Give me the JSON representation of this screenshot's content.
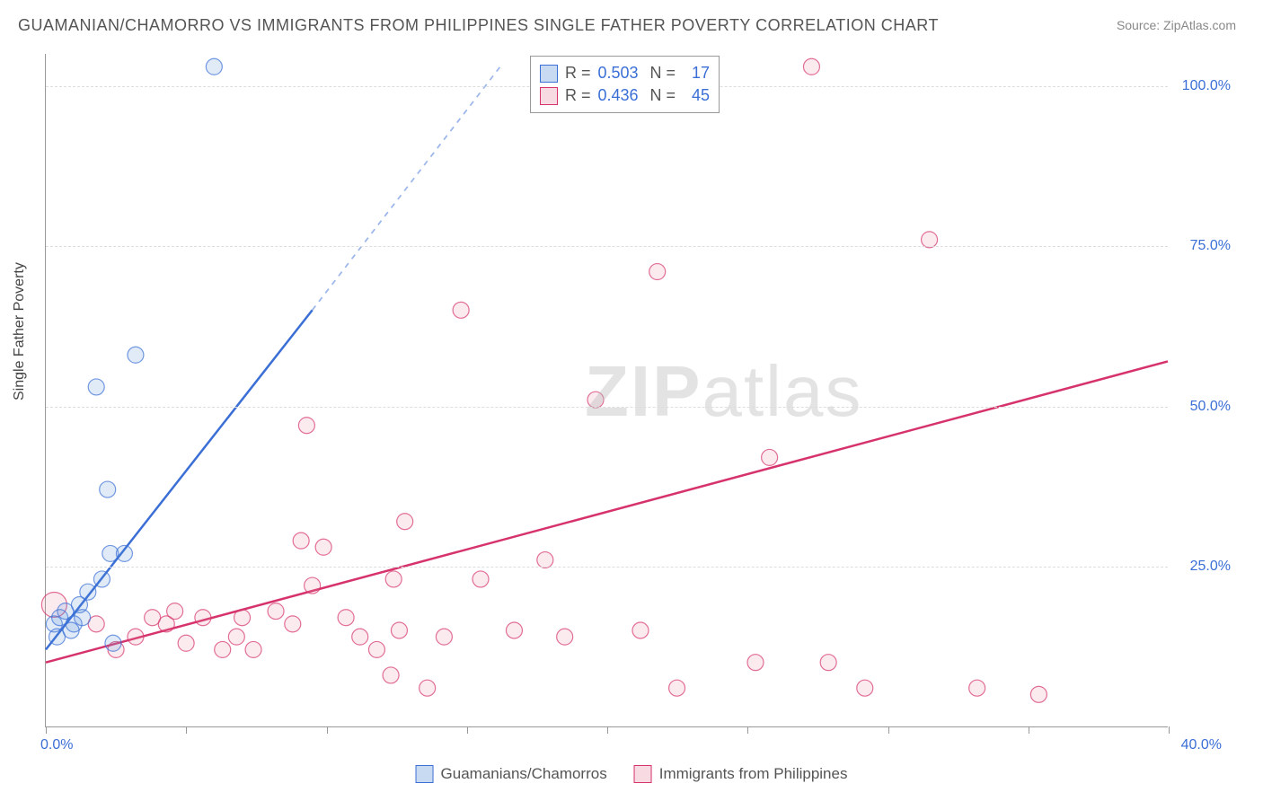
{
  "title": "GUAMANIAN/CHAMORRO VS IMMIGRANTS FROM PHILIPPINES SINGLE FATHER POVERTY CORRELATION CHART",
  "source_label": "Source: ZipAtlas.com",
  "y_axis_label": "Single Father Poverty",
  "watermark": {
    "bold": "ZIP",
    "light": "atlas"
  },
  "chart": {
    "type": "scatter",
    "xlim": [
      0,
      40
    ],
    "ylim": [
      0,
      105
    ],
    "x_origin_label": "0.0%",
    "x_max_label": "40.0%",
    "x_label_color": "#3b6fd6",
    "y_ticks": [
      25,
      50,
      75,
      100
    ],
    "y_tick_labels": [
      "25.0%",
      "50.0%",
      "75.0%",
      "100.0%"
    ],
    "y_tick_color": "#3b6fd6",
    "x_tick_positions": [
      0,
      5,
      10,
      15,
      20,
      25,
      30,
      35,
      40
    ],
    "background_color": "#ffffff",
    "grid_color": "#dddddd",
    "axis_color": "#999999",
    "marker_radius": 9,
    "marker_stroke_width": 1.2,
    "marker_fill_opacity": 0.18,
    "trend_line_width": 2.5,
    "series": [
      {
        "name": "Guamanians/Chamorros",
        "color": "#5b8fd6",
        "stroke": "#3b6fd6",
        "r_value": "0.503",
        "n_value": "17",
        "trend": {
          "x1": 0,
          "y1": 12,
          "x2_solid": 9.5,
          "y2_solid": 65,
          "x2_dash": 16.2,
          "y2_dash": 103
        },
        "points": [
          {
            "x": 0.3,
            "y": 16
          },
          {
            "x": 0.5,
            "y": 17
          },
          {
            "x": 0.7,
            "y": 18
          },
          {
            "x": 1.0,
            "y": 16
          },
          {
            "x": 1.3,
            "y": 17
          },
          {
            "x": 1.2,
            "y": 19
          },
          {
            "x": 1.5,
            "y": 21
          },
          {
            "x": 2.0,
            "y": 23
          },
          {
            "x": 2.3,
            "y": 27
          },
          {
            "x": 2.8,
            "y": 27
          },
          {
            "x": 2.4,
            "y": 13
          },
          {
            "x": 2.2,
            "y": 37
          },
          {
            "x": 1.8,
            "y": 53
          },
          {
            "x": 3.2,
            "y": 58
          },
          {
            "x": 6.0,
            "y": 103
          },
          {
            "x": 0.4,
            "y": 14
          },
          {
            "x": 0.9,
            "y": 15
          }
        ]
      },
      {
        "name": "Immigrants from Philippines",
        "color": "#e78fa8",
        "stroke": "#d6336c",
        "r_value": "0.436",
        "n_value": "45",
        "trend": {
          "x1": 0,
          "y1": 10,
          "x2_solid": 40,
          "y2_solid": 57,
          "x2_dash": 40,
          "y2_dash": 57
        },
        "points": [
          {
            "x": 0.3,
            "y": 19,
            "r": 14
          },
          {
            "x": 1.8,
            "y": 16
          },
          {
            "x": 2.5,
            "y": 12
          },
          {
            "x": 3.2,
            "y": 14
          },
          {
            "x": 3.8,
            "y": 17
          },
          {
            "x": 4.3,
            "y": 16
          },
          {
            "x": 5.0,
            "y": 13
          },
          {
            "x": 5.6,
            "y": 17
          },
          {
            "x": 6.3,
            "y": 12
          },
          {
            "x": 7.0,
            "y": 17
          },
          {
            "x": 7.4,
            "y": 12
          },
          {
            "x": 8.2,
            "y": 18
          },
          {
            "x": 8.8,
            "y": 16
          },
          {
            "x": 9.5,
            "y": 22
          },
          {
            "x": 9.1,
            "y": 29
          },
          {
            "x": 9.9,
            "y": 28
          },
          {
            "x": 9.3,
            "y": 47
          },
          {
            "x": 10.7,
            "y": 17
          },
          {
            "x": 11.2,
            "y": 14
          },
          {
            "x": 11.8,
            "y": 12
          },
          {
            "x": 12.3,
            "y": 8
          },
          {
            "x": 12.6,
            "y": 15
          },
          {
            "x": 12.4,
            "y": 23
          },
          {
            "x": 12.8,
            "y": 32
          },
          {
            "x": 13.6,
            "y": 6
          },
          {
            "x": 14.2,
            "y": 14
          },
          {
            "x": 14.8,
            "y": 65
          },
          {
            "x": 15.5,
            "y": 23
          },
          {
            "x": 16.7,
            "y": 15
          },
          {
            "x": 17.8,
            "y": 26
          },
          {
            "x": 18.5,
            "y": 14
          },
          {
            "x": 19.6,
            "y": 51
          },
          {
            "x": 21.2,
            "y": 15
          },
          {
            "x": 21.8,
            "y": 71
          },
          {
            "x": 22.5,
            "y": 6
          },
          {
            "x": 25.3,
            "y": 10
          },
          {
            "x": 25.8,
            "y": 42
          },
          {
            "x": 27.3,
            "y": 103
          },
          {
            "x": 27.9,
            "y": 10
          },
          {
            "x": 29.2,
            "y": 6
          },
          {
            "x": 31.5,
            "y": 76
          },
          {
            "x": 33.2,
            "y": 6
          },
          {
            "x": 35.4,
            "y": 5
          },
          {
            "x": 4.6,
            "y": 18
          },
          {
            "x": 6.8,
            "y": 14
          }
        ]
      }
    ]
  },
  "legend_top": {
    "r_label": "R =",
    "n_label": "N =",
    "text_color": "#555555",
    "value_color": "#3b6fd6"
  },
  "legend_bottom": {
    "text_color": "#555555"
  }
}
